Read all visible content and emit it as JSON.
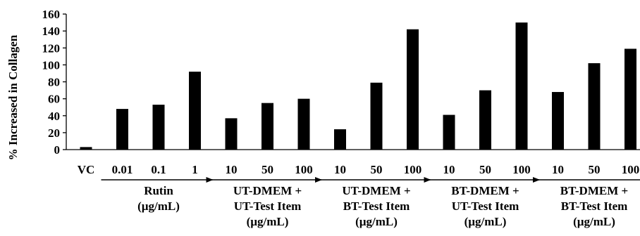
{
  "chart_data": {
    "type": "bar",
    "title": "",
    "ylabel": "% Increased in Collagen",
    "xlabel": "",
    "ylim": [
      0,
      160
    ],
    "yticks": [
      0,
      20,
      40,
      60,
      80,
      100,
      120,
      140,
      160
    ],
    "bar_color": "#000000",
    "grid": false,
    "legend": "none",
    "categories": [
      "VC",
      "0.01",
      "0.1",
      "1",
      "10",
      "50",
      "100",
      "10",
      "50",
      "100",
      "10",
      "50",
      "100",
      "10",
      "50",
      "100"
    ],
    "values": [
      3,
      48,
      53,
      92,
      37,
      55,
      60,
      24,
      79,
      142,
      41,
      70,
      150,
      68,
      102,
      119
    ],
    "groups": [
      {
        "label_lines": [
          "Rutin",
          "(µg/mL)"
        ],
        "start_index": 1,
        "end_index": 3
      },
      {
        "label_lines": [
          "UT-DMEM +",
          "UT-Test Item",
          "(µg/mL)"
        ],
        "start_index": 4,
        "end_index": 6
      },
      {
        "label_lines": [
          "UT-DMEM +",
          "BT-Test Item",
          "(µg/mL)"
        ],
        "start_index": 7,
        "end_index": 9
      },
      {
        "label_lines": [
          "BT-DMEM +",
          "UT-Test Item",
          "(µg/mL)"
        ],
        "start_index": 10,
        "end_index": 12
      },
      {
        "label_lines": [
          "BT-DMEM +",
          "BT-Test Item",
          "(µg/mL)"
        ],
        "start_index": 13,
        "end_index": 15
      }
    ]
  }
}
